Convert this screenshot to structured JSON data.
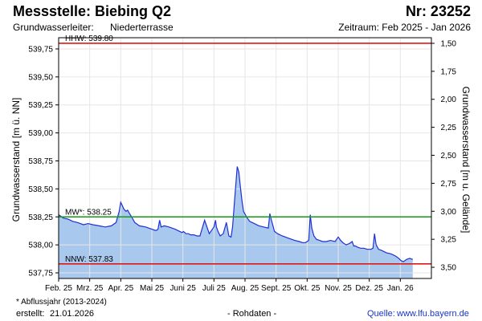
{
  "header": {
    "title": "Messstelle: Biebing Q2",
    "nr": "Nr: 23252",
    "aquifer_label": "Grundwasserleiter:",
    "aquifer_value": "Niederterrasse",
    "period": "Zeitraum: Feb 2025 - Jan 2026"
  },
  "footer": {
    "footnote": "* Abflussjahr (2013-2024)",
    "created_label": "erstellt:",
    "created_date": "21.01.2026",
    "raw_data": "- Rohdaten -",
    "source_label": "Quelle:",
    "source_url": "www.lfu.bayern.de"
  },
  "colors": {
    "fill": "#a9c8ee",
    "line": "#1f2fd6",
    "hhw": "#e01818",
    "mw": "#139a13",
    "nnw": "#e01818",
    "grid": "#ffffff",
    "plot_bg": "#ffffff"
  },
  "chart_data": {
    "type": "area",
    "title": "Messstelle: Biebing Q2",
    "ylabel": "Grundwasserstand [m ü. NN]",
    "y2label": "Grundwasserstand [m u. Gelände]",
    "ylim": [
      537.7,
      539.85
    ],
    "y_ticks": [
      {
        "value": 537.75,
        "label": "537,75"
      },
      {
        "value": 538.0,
        "label": "538,00"
      },
      {
        "value": 538.25,
        "label": "538,25"
      },
      {
        "value": 538.5,
        "label": "538,50"
      },
      {
        "value": 538.75,
        "label": "538,75"
      },
      {
        "value": 539.0,
        "label": "539,00"
      },
      {
        "value": 539.25,
        "label": "539,25"
      },
      {
        "value": 539.5,
        "label": "539,50"
      },
      {
        "value": 539.75,
        "label": "539,75"
      }
    ],
    "y2_ticks": [
      {
        "depth": 1.5,
        "label": "1,50"
      },
      {
        "depth": 1.75,
        "label": "1,75"
      },
      {
        "depth": 2.0,
        "label": "2,00"
      },
      {
        "depth": 2.25,
        "label": "2,25"
      },
      {
        "depth": 2.5,
        "label": "2,50"
      },
      {
        "depth": 2.75,
        "label": "2,75"
      },
      {
        "depth": 3.0,
        "label": "3,00"
      },
      {
        "depth": 3.25,
        "label": "3,25"
      },
      {
        "depth": 3.5,
        "label": "3,50"
      }
    ],
    "ground_level": 541.3,
    "x_ticks": [
      "Feb. 25",
      "Mrz. 25",
      "Apr. 25",
      "Mai 25",
      "Juni 25",
      "Juli 25",
      "Aug. 25",
      "Sept. 25",
      "Okt. 25",
      "Nov. 25",
      "Dez. 25",
      "Jan. 26"
    ],
    "x_start": 0,
    "x_end": 12,
    "reference_lines": [
      {
        "key": "hhw",
        "label": "HHW: 539.80",
        "value": 539.8
      },
      {
        "key": "mw",
        "label": "MW*: 538.25",
        "value": 538.25
      },
      {
        "key": "nnw",
        "label": "NNW: 537.83",
        "value": 537.83
      }
    ],
    "series": [
      {
        "x": [
          0,
          0.05,
          0.15,
          0.3,
          0.45,
          0.6,
          0.8,
          0.95,
          1.1,
          1.3,
          1.5,
          1.7,
          1.85,
          1.95,
          2.0,
          2.05,
          2.1,
          2.17,
          2.22,
          2.28,
          2.35,
          2.45,
          2.6,
          2.8,
          3.0,
          3.1,
          3.15,
          3.2,
          3.25,
          3.3,
          3.4,
          3.55,
          3.75,
          3.9,
          3.98,
          4.02,
          4.1,
          4.18,
          4.25,
          4.35,
          4.45,
          4.55,
          4.7,
          4.85,
          5.0,
          5.05,
          5.08,
          5.13,
          5.2,
          5.3,
          5.4,
          5.48,
          5.55,
          5.6,
          5.65,
          5.75,
          5.8,
          5.85,
          5.9,
          5.95,
          6.05,
          6.15,
          6.3,
          6.45,
          6.6,
          6.75,
          6.8,
          6.85,
          6.95,
          7.05,
          7.2,
          7.4,
          7.6,
          7.75,
          7.85,
          7.95,
          8.05,
          8.1,
          8.15,
          8.22,
          8.3,
          8.4,
          8.5,
          8.62,
          8.75,
          8.9,
          9.0,
          9.08,
          9.15,
          9.25,
          9.35,
          9.45,
          9.5,
          9.55,
          9.62,
          9.72,
          9.82,
          9.95,
          10.05,
          10.12,
          10.17,
          10.22,
          10.3,
          10.4,
          10.55,
          10.7,
          10.85,
          10.95,
          11.02,
          11.1,
          11.2,
          11.3,
          11.4
        ],
        "y": [
          538.27,
          538.26,
          538.24,
          538.23,
          538.21,
          538.2,
          538.18,
          538.19,
          538.18,
          538.17,
          538.16,
          538.17,
          538.2,
          538.3,
          538.38,
          538.35,
          538.32,
          538.3,
          538.31,
          538.28,
          538.25,
          538.2,
          538.17,
          538.16,
          538.14,
          538.13,
          538.13,
          538.14,
          538.22,
          538.16,
          538.17,
          538.16,
          538.14,
          538.12,
          538.11,
          538.12,
          538.1,
          538.1,
          538.09,
          538.09,
          538.08,
          538.08,
          538.22,
          538.1,
          538.16,
          538.22,
          538.16,
          538.12,
          538.08,
          538.1,
          538.2,
          538.08,
          538.07,
          538.16,
          538.35,
          538.7,
          538.65,
          538.52,
          538.4,
          538.3,
          538.25,
          538.21,
          538.19,
          538.17,
          538.16,
          538.15,
          538.28,
          538.22,
          538.12,
          538.1,
          538.08,
          538.06,
          538.04,
          538.03,
          538.02,
          538.02,
          538.04,
          538.27,
          538.15,
          538.08,
          538.05,
          538.04,
          538.03,
          538.03,
          538.04,
          538.03,
          538.07,
          538.04,
          538.02,
          538.0,
          538.01,
          538.03,
          537.99,
          537.99,
          537.98,
          537.97,
          537.97,
          537.96,
          537.96,
          537.97,
          538.1,
          538.0,
          537.96,
          537.95,
          537.93,
          537.92,
          537.9,
          537.88,
          537.86,
          537.85,
          537.87,
          537.88,
          537.87
        ]
      }
    ]
  }
}
